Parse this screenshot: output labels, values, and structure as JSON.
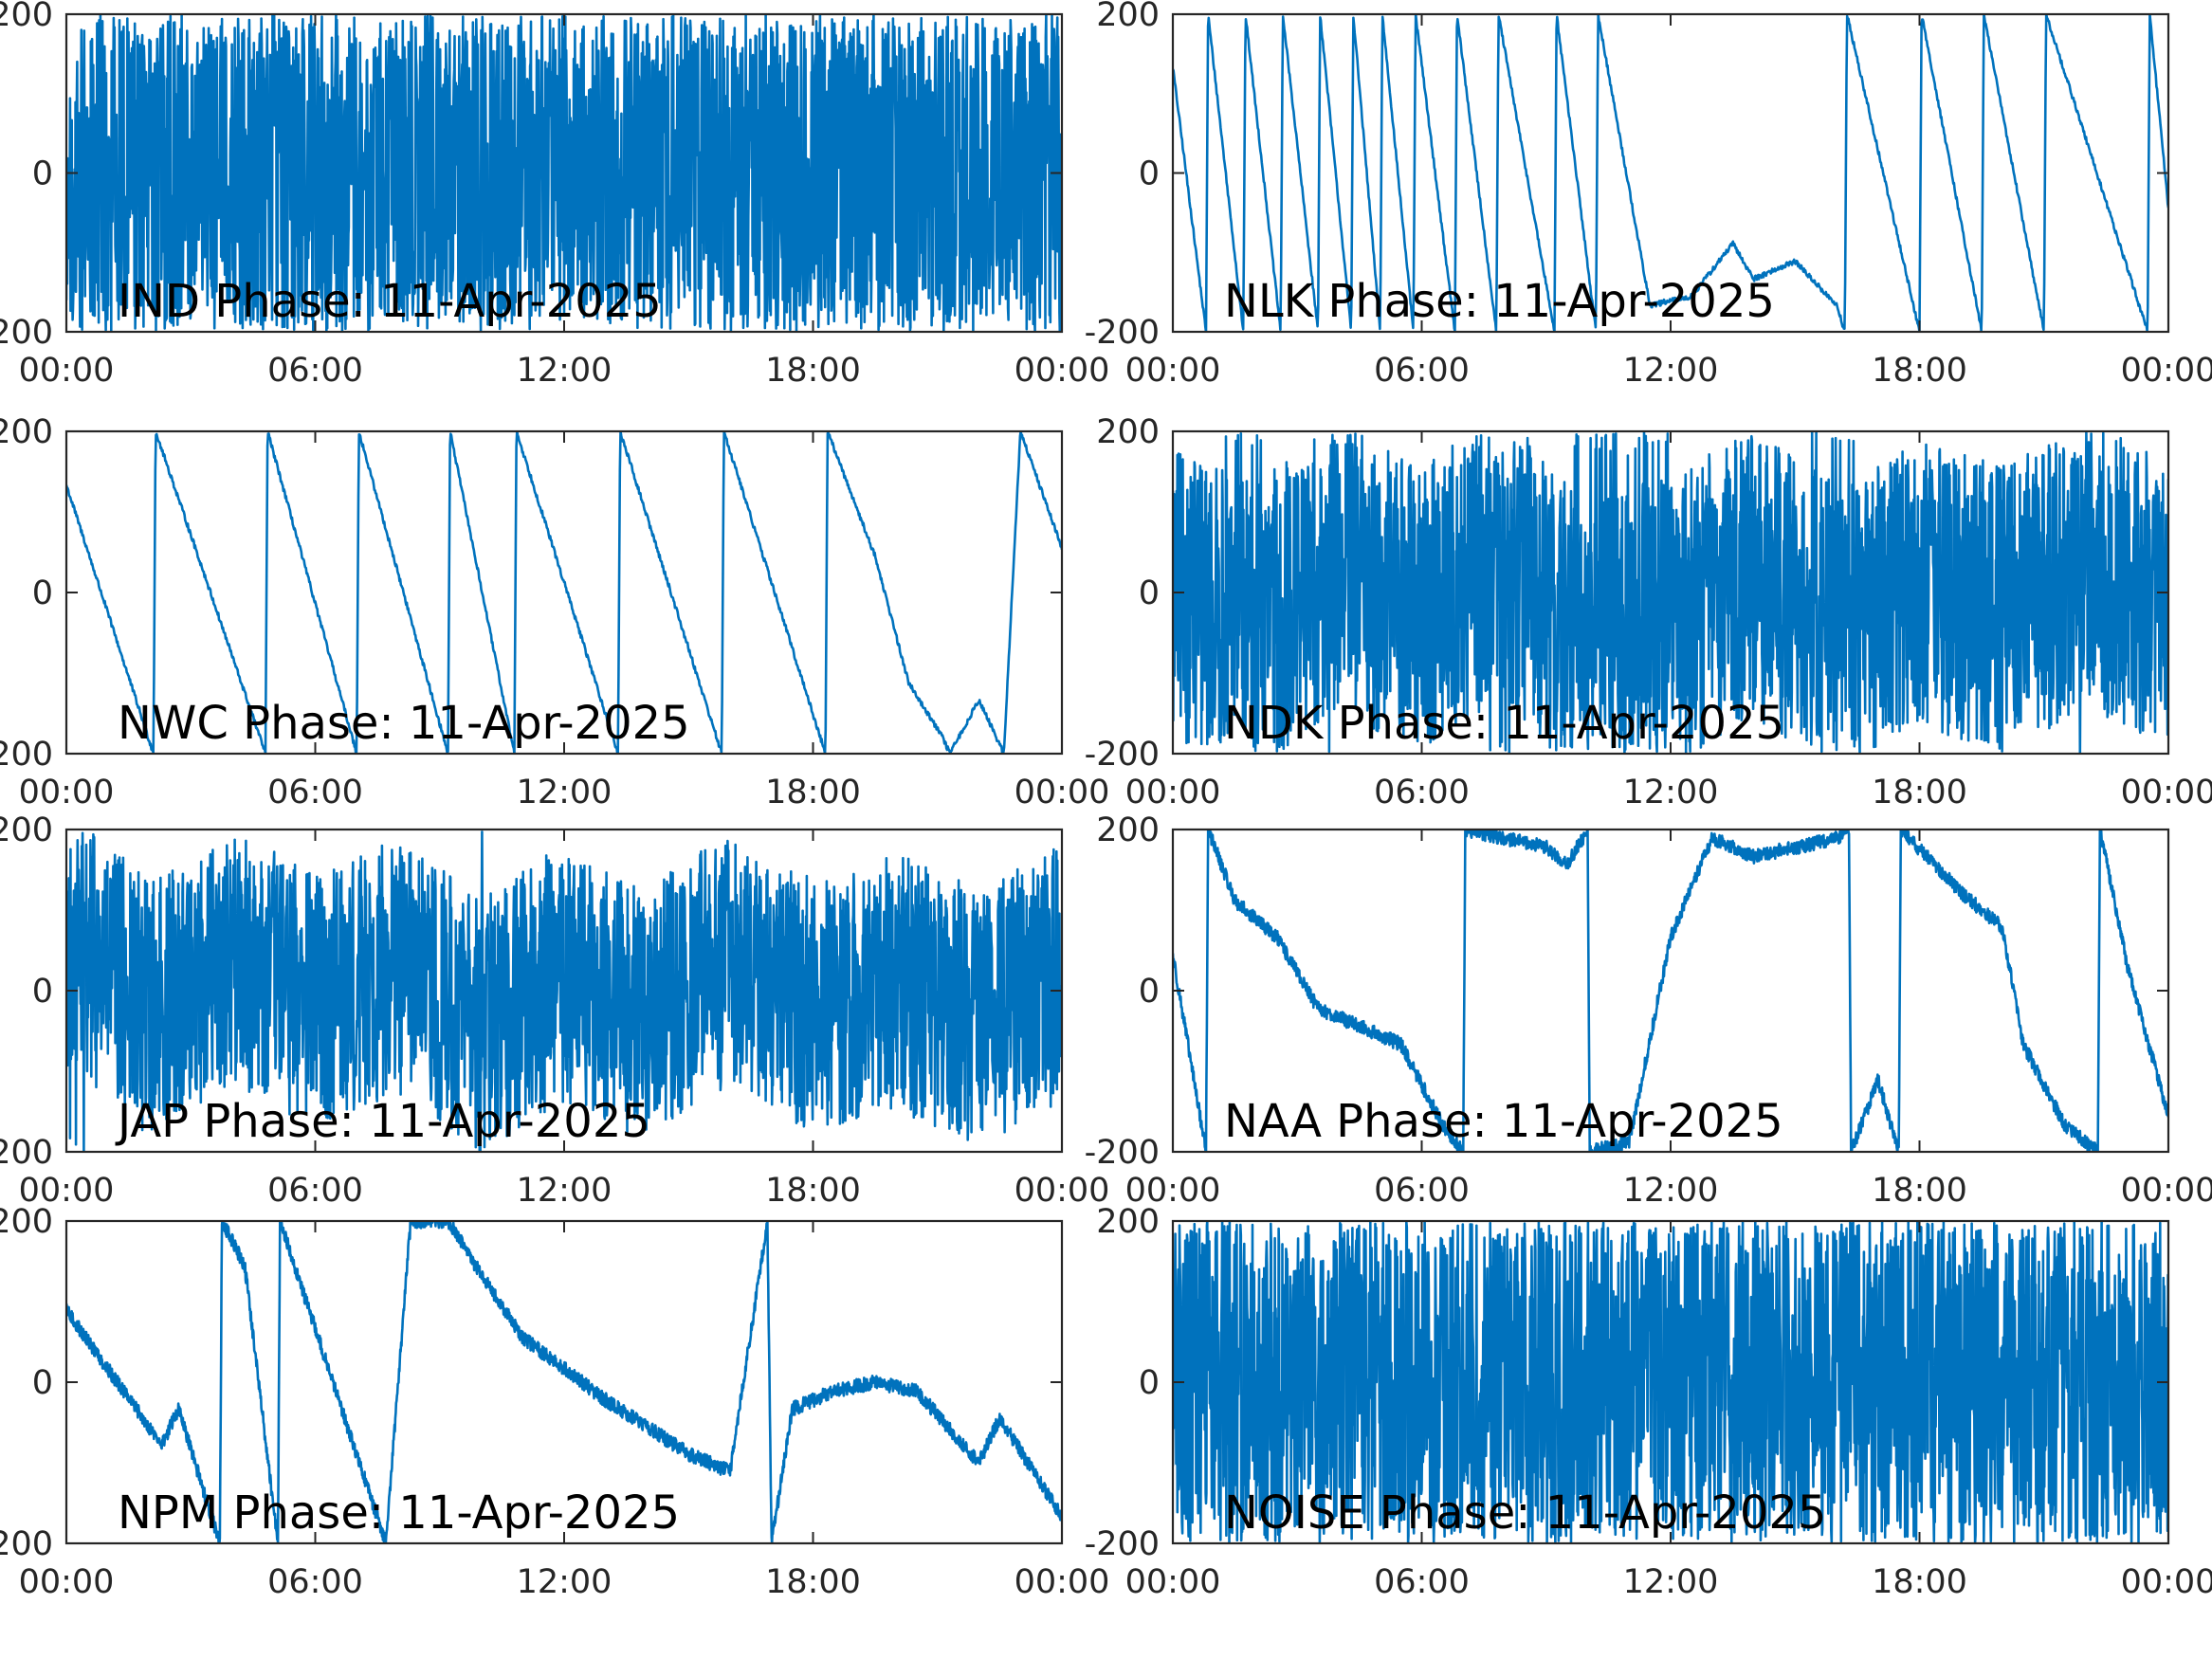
{
  "style": {
    "series_color": "#0072BD",
    "axis_color": "#262626"
  },
  "chart_data": [
    {
      "type": "line",
      "title": "IND Phase: 11-Apr-2025",
      "xlabel": "",
      "ylabel": "",
      "xlim_hours": [
        0,
        24
      ],
      "ylim": [
        -180,
        180
      ],
      "x_tick_labels": [
        "00:00",
        "06:00",
        "12:00",
        "18:00",
        "00:00"
      ],
      "y_tick_labels": [
        "-200",
        "0",
        "200"
      ],
      "series": [
        {
          "pattern": "noisy wraps",
          "intensity": 0.75,
          "dense_range_hours": [
            10.5,
            16.5
          ],
          "samples": [
            [
              0,
              100
            ],
            [
              1,
              90
            ],
            [
              2,
              -60
            ],
            [
              3,
              -20
            ],
            [
              4,
              40
            ],
            [
              5,
              -90
            ],
            [
              6,
              60
            ],
            [
              7,
              -120
            ],
            [
              8,
              10
            ],
            [
              9,
              -40
            ],
            [
              10,
              30
            ],
            [
              12,
              -20
            ],
            [
              14,
              40
            ],
            [
              16,
              -30
            ],
            [
              18,
              20
            ],
            [
              20,
              -40
            ],
            [
              22,
              30
            ],
            [
              23.5,
              -20
            ],
            [
              24,
              -60
            ]
          ]
        }
      ]
    },
    {
      "type": "line",
      "title": "NLK Phase: 11-Apr-2025",
      "xlabel": "",
      "ylabel": "",
      "xlim_hours": [
        0,
        24
      ],
      "ylim": [
        -180,
        180
      ],
      "x_tick_labels": [
        "00:00",
        "06:00",
        "12:00",
        "18:00",
        "00:00"
      ],
      "y_tick_labels": [
        "-200",
        "0",
        "200"
      ],
      "series": [
        {
          "pattern": "sawtooth",
          "samples": [
            [
              0,
              120
            ],
            [
              0.8,
              -180
            ],
            [
              0.85,
              180
            ],
            [
              1.7,
              -180
            ],
            [
              1.75,
              180
            ],
            [
              2.6,
              -180
            ],
            [
              2.65,
              180
            ],
            [
              3.5,
              -180
            ],
            [
              3.55,
              180
            ],
            [
              4.3,
              -180
            ],
            [
              4.35,
              180
            ],
            [
              5.0,
              -180
            ],
            [
              5.05,
              180
            ],
            [
              5.8,
              -180
            ],
            [
              5.85,
              180
            ],
            [
              6.8,
              -180
            ],
            [
              6.85,
              180
            ],
            [
              7.8,
              -180
            ],
            [
              7.85,
              180
            ],
            [
              9.2,
              -180
            ],
            [
              9.25,
              180
            ],
            [
              10.2,
              -180
            ],
            [
              10.25,
              180
            ],
            [
              11.5,
              -150
            ],
            [
              12.5,
              -140
            ],
            [
              13.5,
              -80
            ],
            [
              14,
              -120
            ],
            [
              15,
              -100
            ],
            [
              16,
              -150
            ],
            [
              16.2,
              -180
            ],
            [
              16.25,
              180
            ],
            [
              18,
              -180
            ],
            [
              18.05,
              180
            ],
            [
              19.5,
              -180
            ],
            [
              19.55,
              180
            ],
            [
              21,
              -180
            ],
            [
              21.05,
              180
            ],
            [
              23.5,
              -180
            ],
            [
              23.55,
              180
            ],
            [
              24,
              -40
            ]
          ]
        }
      ]
    },
    {
      "type": "line",
      "title": "NWC Phase: 11-Apr-2025",
      "xlabel": "",
      "ylabel": "",
      "xlim_hours": [
        0,
        24
      ],
      "ylim": [
        -180,
        180
      ],
      "x_tick_labels": [
        "00:00",
        "06:00",
        "12:00",
        "18:00",
        "00:00"
      ],
      "y_tick_labels": [
        "-200",
        "0",
        "200"
      ],
      "series": [
        {
          "pattern": "sawtooth",
          "samples": [
            [
              0,
              120
            ],
            [
              2.1,
              -180
            ],
            [
              2.15,
              180
            ],
            [
              4.8,
              -180
            ],
            [
              4.85,
              180
            ],
            [
              7.0,
              -180
            ],
            [
              7.05,
              180
            ],
            [
              9.2,
              -180
            ],
            [
              9.25,
              180
            ],
            [
              10.8,
              -180
            ],
            [
              10.85,
              180
            ],
            [
              13.3,
              -180
            ],
            [
              13.35,
              180
            ],
            [
              15.8,
              -180
            ],
            [
              15.85,
              180
            ],
            [
              18.3,
              -180
            ],
            [
              18.35,
              180
            ],
            [
              19.5,
              40
            ],
            [
              20.3,
              -100
            ],
            [
              21.1,
              -160
            ],
            [
              21.3,
              -180
            ],
            [
              22,
              -120
            ],
            [
              22.6,
              -180
            ],
            [
              23.0,
              180
            ],
            [
              24,
              50
            ]
          ]
        }
      ]
    },
    {
      "type": "line",
      "title": "NDK Phase: 11-Apr-2025",
      "xlabel": "",
      "ylabel": "",
      "xlim_hours": [
        0,
        24
      ],
      "ylim": [
        -180,
        180
      ],
      "x_tick_labels": [
        "00:00",
        "06:00",
        "12:00",
        "18:00",
        "00:00"
      ],
      "y_tick_labels": [
        "-200",
        "0",
        "200"
      ],
      "series": [
        {
          "pattern": "noisy wraps",
          "intensity": 0.45,
          "samples": [
            [
              0,
              0
            ],
            [
              2,
              -40
            ],
            [
              4,
              30
            ],
            [
              6,
              -20
            ],
            [
              8,
              40
            ],
            [
              10,
              -60
            ],
            [
              12,
              -30
            ],
            [
              14,
              20
            ],
            [
              16,
              -40
            ],
            [
              18,
              10
            ],
            [
              20,
              -20
            ],
            [
              22,
              30
            ],
            [
              24,
              -10
            ]
          ]
        }
      ]
    },
    {
      "type": "line",
      "title": "JAP Phase: 11-Apr-2025",
      "xlabel": "",
      "ylabel": "",
      "xlim_hours": [
        0,
        24
      ],
      "ylim": [
        -180,
        180
      ],
      "x_tick_labels": [
        "00:00",
        "06:00",
        "12:00",
        "18:00",
        "00:00"
      ],
      "y_tick_labels": [
        "-200",
        "0",
        "200"
      ],
      "series": [
        {
          "pattern": "noisy wraps",
          "intensity": 0.4,
          "samples": [
            [
              0,
              60
            ],
            [
              2,
              -20
            ],
            [
              4,
              40
            ],
            [
              6,
              -10
            ],
            [
              8,
              30
            ],
            [
              10,
              -40
            ],
            [
              12,
              20
            ],
            [
              14,
              -30
            ],
            [
              16,
              40
            ],
            [
              18,
              -20
            ],
            [
              20,
              10
            ],
            [
              22,
              -30
            ],
            [
              24,
              20
            ]
          ]
        }
      ]
    },
    {
      "type": "line",
      "title": "NAA Phase: 11-Apr-2025",
      "xlabel": "",
      "ylabel": "",
      "xlim_hours": [
        0,
        24
      ],
      "ylim": [
        -180,
        180
      ],
      "x_tick_labels": [
        "00:00",
        "06:00",
        "12:00",
        "18:00",
        "00:00"
      ],
      "y_tick_labels": [
        "-200",
        "0",
        "200"
      ],
      "series": [
        {
          "pattern": "drift",
          "samples": [
            [
              0,
              40
            ],
            [
              0.8,
              -180
            ],
            [
              0.85,
              180
            ],
            [
              1.5,
              100
            ],
            [
              2.5,
              60
            ],
            [
              3.5,
              -20
            ],
            [
              4.5,
              -40
            ],
            [
              5.5,
              -60
            ],
            [
              6.5,
              -150
            ],
            [
              7,
              -180
            ],
            [
              7.05,
              180
            ],
            [
              9,
              160
            ],
            [
              9.5,
              140
            ],
            [
              10,
              180
            ],
            [
              10.05,
              -180
            ],
            [
              11,
              -170
            ],
            [
              12,
              60
            ],
            [
              13,
              170
            ],
            [
              14,
              150
            ],
            [
              16,
              170
            ],
            [
              16.3,
              180
            ],
            [
              16.35,
              -180
            ],
            [
              17,
              -100
            ],
            [
              17.5,
              -180
            ],
            [
              17.55,
              180
            ],
            [
              19,
              110
            ],
            [
              20,
              70
            ],
            [
              20.5,
              -60
            ],
            [
              21.5,
              -150
            ],
            [
              22.3,
              -180
            ],
            [
              22.35,
              180
            ],
            [
              23,
              30
            ],
            [
              24,
              -140
            ]
          ]
        }
      ]
    },
    {
      "type": "line",
      "title": "NPM Phase: 11-Apr-2025",
      "xlabel": "",
      "ylabel": "",
      "xlim_hours": [
        0,
        24
      ],
      "ylim": [
        -180,
        180
      ],
      "x_tick_labels": [
        "00:00",
        "06:00",
        "12:00",
        "18:00",
        "00:00"
      ],
      "y_tick_labels": [
        "-200",
        "0",
        "200"
      ],
      "series": [
        {
          "pattern": "drift",
          "samples": [
            [
              0,
              80
            ],
            [
              2.3,
              -70
            ],
            [
              2.7,
              -30
            ],
            [
              3.7,
              -180
            ],
            [
              3.75,
              180
            ],
            [
              4.3,
              130
            ],
            [
              5.1,
              -180
            ],
            [
              5.15,
              180
            ],
            [
              6,
              60
            ],
            [
              7.7,
              -180
            ],
            [
              8.3,
              180
            ],
            [
              9.2,
              180
            ],
            [
              10,
              120
            ],
            [
              11,
              50
            ],
            [
              13,
              -20
            ],
            [
              15,
              -80
            ],
            [
              16,
              -100
            ],
            [
              16.9,
              180
            ],
            [
              17,
              -180
            ],
            [
              17.5,
              -30
            ],
            [
              18.5,
              -10
            ],
            [
              19.5,
              0
            ],
            [
              20.5,
              -10
            ],
            [
              22,
              -90
            ],
            [
              22.5,
              -40
            ],
            [
              24,
              -150
            ]
          ]
        }
      ]
    },
    {
      "type": "line",
      "title": "NOISE Phase: 11-Apr-2025",
      "xlabel": "",
      "ylabel": "",
      "xlim_hours": [
        0,
        24
      ],
      "ylim": [
        -180,
        180
      ],
      "x_tick_labels": [
        "00:00",
        "06:00",
        "12:00",
        "18:00",
        "00:00"
      ],
      "y_tick_labels": [
        "-200",
        "0",
        "200"
      ],
      "series": [
        {
          "pattern": "noisy wraps",
          "intensity": 0.55,
          "samples": [
            [
              0,
              -40
            ],
            [
              2,
              20
            ],
            [
              4,
              -20
            ],
            [
              6,
              40
            ],
            [
              8,
              -30
            ],
            [
              10,
              10
            ],
            [
              12,
              -40
            ],
            [
              14,
              20
            ],
            [
              16,
              -30
            ],
            [
              18,
              10
            ],
            [
              20,
              -20
            ],
            [
              22,
              0
            ],
            [
              24,
              40
            ]
          ]
        }
      ]
    }
  ]
}
